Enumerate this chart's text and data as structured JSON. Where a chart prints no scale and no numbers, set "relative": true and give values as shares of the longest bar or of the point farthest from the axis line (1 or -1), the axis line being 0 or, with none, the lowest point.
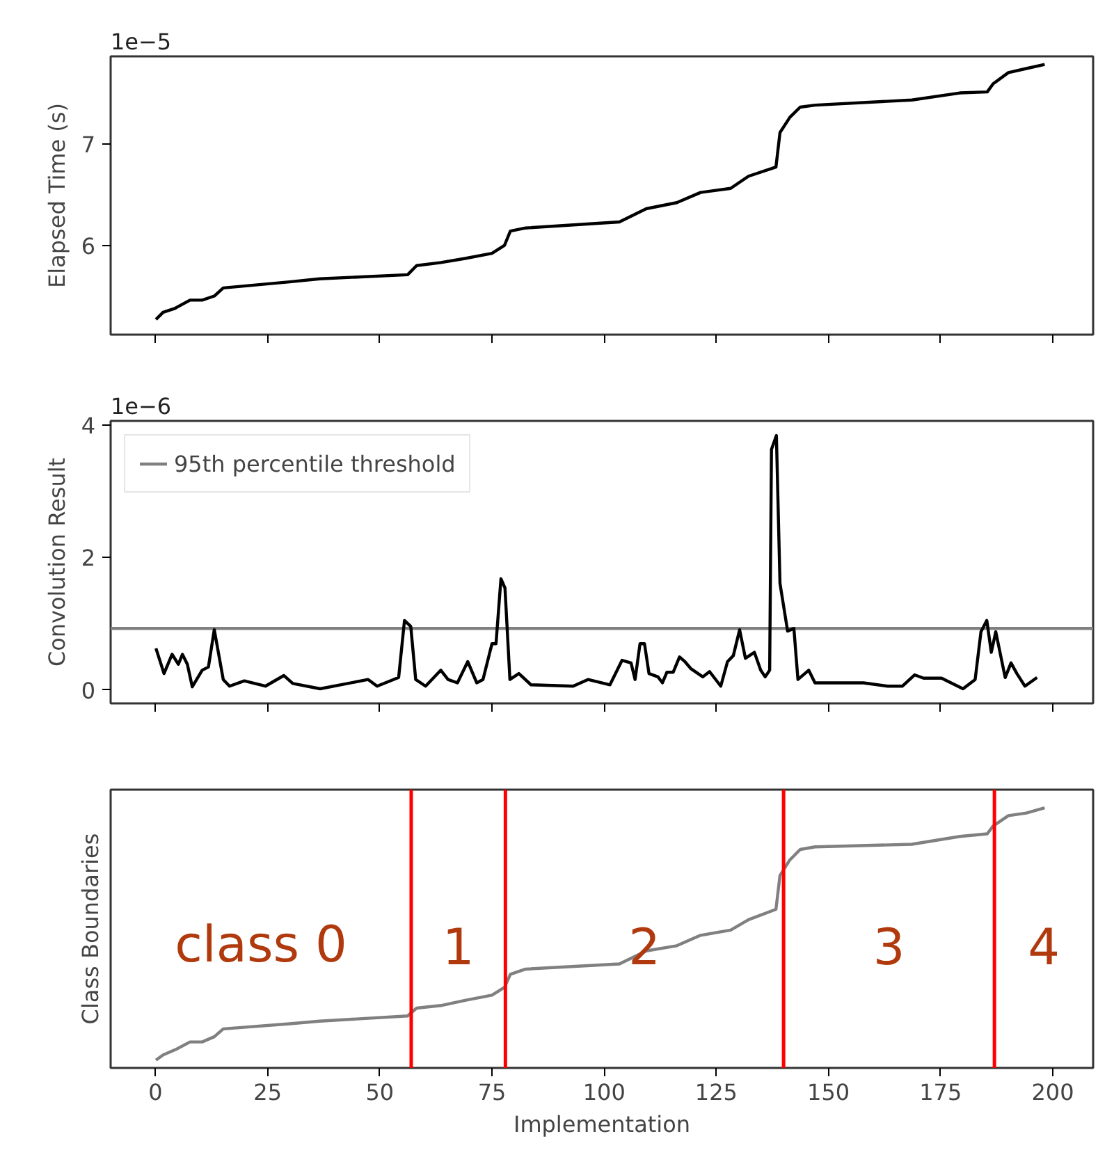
{
  "chart_data": [
    {
      "type": "line",
      "ylabel": "Elapsed Time (s)",
      "annotations": [
        "1e−5"
      ],
      "xlim": [
        -10,
        209
      ],
      "xticks": [
        0,
        25,
        50,
        75,
        100,
        125,
        150,
        175,
        200
      ],
      "ylim": [
        5.12,
        7.86
      ],
      "yticks": [
        6,
        7
      ],
      "tick_labels": "y",
      "x": [
        0.1,
        1.7,
        4.4,
        7.7,
        10.4,
        13.1,
        15.1,
        29.9,
        36.6,
        56.2,
        58.2,
        63.6,
        69,
        75,
        77.8,
        79.1,
        82.5,
        103.4,
        109.4,
        116.2,
        121.5,
        128.2,
        132.2,
        138.3,
        139.2,
        141.4,
        143.7,
        147,
        168.6,
        179.3,
        185.4,
        186.7,
        190.1,
        194.1,
        198.2
      ],
      "series": [
        {
          "color": "#000000",
          "values": [
            5.27,
            5.34,
            5.38,
            5.46,
            5.46,
            5.5,
            5.58,
            5.64,
            5.67,
            5.71,
            5.8,
            5.83,
            5.87,
            5.92,
            6.0,
            6.14,
            6.17,
            6.23,
            6.36,
            6.42,
            6.52,
            6.56,
            6.68,
            6.77,
            7.11,
            7.26,
            7.36,
            7.38,
            7.43,
            7.5,
            7.51,
            7.59,
            7.7,
            7.74,
            7.78
          ]
        }
      ]
    },
    {
      "type": "line",
      "ylabel": "Convolution Result",
      "annotations": [
        "1e−6"
      ],
      "xlim": [
        -10,
        209
      ],
      "xticks": [
        0,
        25,
        50,
        75,
        100,
        125,
        150,
        175,
        200
      ],
      "ylim": [
        -0.2,
        4.06
      ],
      "yticks": [
        0,
        2,
        4
      ],
      "tick_labels": "y",
      "legend": "top left",
      "ref_lines": [
        {
          "axis": "y",
          "value": 0.93,
          "label": "95th percentile threshold",
          "color": "#808080"
        }
      ],
      "x": [
        0.1,
        1.9,
        3.7,
        5.1,
        6,
        7.1,
        8.2,
        10.4,
        11.8,
        13.1,
        15.1,
        16.5,
        19.8,
        24.5,
        28.6,
        30.6,
        36.7,
        47.4,
        49.4,
        54.2,
        55.5,
        56.9,
        58,
        60.2,
        63.6,
        65.2,
        67.3,
        69.6,
        71.6,
        73,
        75,
        75.9,
        77,
        77.9,
        79,
        81,
        83.7,
        93.1,
        96.4,
        101.3,
        104,
        106,
        106.9,
        108,
        109,
        110,
        112,
        113,
        114,
        115.4,
        116.8,
        118,
        119.4,
        122,
        123.5,
        126,
        127.5,
        128.8,
        130.2,
        131.5,
        133.5,
        134.9,
        135.9,
        136.9,
        137.3,
        138.4,
        139.2,
        140.9,
        142.3,
        143.2,
        145.6,
        147,
        152.4,
        157.8,
        163.2,
        166.5,
        169.2,
        171.2,
        175.2,
        180,
        182.7,
        184,
        185.3,
        186.3,
        187.3,
        189.4,
        190.7,
        192,
        193.8,
        196.5
      ],
      "series": [
        {
          "color": "#000000",
          "values": [
            0.63,
            0.25,
            0.54,
            0.39,
            0.54,
            0.39,
            0.05,
            0.3,
            0.35,
            0.91,
            0.16,
            0.06,
            0.14,
            0.06,
            0.22,
            0.1,
            0.02,
            0.16,
            0.06,
            0.19,
            1.05,
            0.96,
            0.16,
            0.06,
            0.3,
            0.16,
            0.11,
            0.43,
            0.11,
            0.16,
            0.7,
            0.7,
            1.68,
            1.54,
            0.16,
            0.25,
            0.08,
            0.06,
            0.16,
            0.08,
            0.45,
            0.41,
            0.16,
            0.7,
            0.7,
            0.25,
            0.2,
            0.11,
            0.27,
            0.27,
            0.5,
            0.43,
            0.32,
            0.2,
            0.28,
            0.06,
            0.43,
            0.52,
            0.91,
            0.48,
            0.57,
            0.3,
            0.2,
            0.3,
            3.63,
            3.84,
            1.61,
            0.89,
            0.93,
            0.16,
            0.3,
            0.11,
            0.11,
            0.11,
            0.06,
            0.06,
            0.23,
            0.18,
            0.18,
            0.02,
            0.16,
            0.88,
            1.05,
            0.57,
            0.88,
            0.19,
            0.41,
            0.25,
            0.06,
            0.19
          ]
        }
      ]
    },
    {
      "type": "line",
      "ylabel": "Class Boundaries",
      "xlabel": "Implementation",
      "relative": true,
      "xlim": [
        -10,
        209
      ],
      "xticks": [
        0,
        25,
        50,
        75,
        100,
        125,
        150,
        175,
        200
      ],
      "tick_labels": "x",
      "ref_lines": [
        {
          "axis": "x",
          "value": 57,
          "color": "#ff0000"
        },
        {
          "axis": "x",
          "value": 78,
          "color": "#ff0000"
        },
        {
          "axis": "x",
          "value": 140,
          "color": "#ff0000"
        },
        {
          "axis": "x",
          "value": 187,
          "color": "#ff0000"
        }
      ],
      "annotations": [
        "class 0",
        "1",
        "2",
        "3",
        "4"
      ],
      "x": [
        0.1,
        1.7,
        4.4,
        7.7,
        10.4,
        13.1,
        15.1,
        29.9,
        36.6,
        56.2,
        58.2,
        63.6,
        69,
        75,
        77.8,
        79.1,
        82.5,
        103.4,
        109.4,
        116.2,
        121.5,
        128.2,
        132.2,
        138.3,
        139.2,
        141.4,
        143.7,
        147,
        168.6,
        179.3,
        185.4,
        186.7,
        190.1,
        194.1,
        198.2
      ],
      "series": [
        {
          "color": "#808080",
          "values": [
            0.03,
            0.05,
            0.07,
            0.1,
            0.1,
            0.12,
            0.15,
            0.17,
            0.18,
            0.2,
            0.23,
            0.24,
            0.26,
            0.28,
            0.31,
            0.36,
            0.38,
            0.4,
            0.45,
            0.47,
            0.51,
            0.53,
            0.57,
            0.61,
            0.74,
            0.8,
            0.84,
            0.85,
            0.86,
            0.89,
            0.9,
            0.93,
            0.97,
            0.98,
            1.0
          ]
        }
      ]
    }
  ]
}
